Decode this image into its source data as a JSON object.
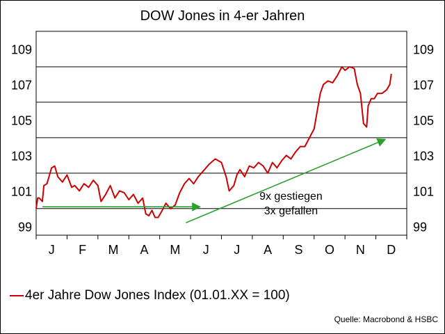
{
  "chart_data": {
    "type": "line",
    "title": "DOW Jones in 4-er Jahren",
    "x_months": [
      "J",
      "F",
      "M",
      "A",
      "M",
      "J",
      "J",
      "A",
      "S",
      "O",
      "N",
      "D"
    ],
    "ylim": [
      98.5,
      110
    ],
    "y_ticks": [
      99,
      101,
      103,
      105,
      107,
      109
    ],
    "y_gridlines": [
      100,
      102,
      104,
      106,
      108,
      110
    ],
    "grid": true,
    "legend_position": "bottom-left",
    "series": [
      {
        "name": "4er Jahre Dow Jones Index (01.01.XX = 100)",
        "color": "#cc0000",
        "x": [
          0,
          0.05,
          0.1,
          0.2,
          0.25,
          0.35,
          0.5,
          0.6,
          0.7,
          0.85,
          1,
          1.15,
          1.25,
          1.4,
          1.55,
          1.7,
          1.85,
          2.0,
          2.1,
          2.25,
          2.4,
          2.55,
          2.7,
          2.85,
          3.0,
          3.15,
          3.3,
          3.45,
          3.55,
          3.65,
          3.75,
          3.85,
          3.95,
          4.05,
          4.2,
          4.35,
          4.5,
          4.65,
          4.8,
          4.95,
          5.1,
          5.25,
          5.4,
          5.6,
          5.8,
          6.0,
          6.15,
          6.25,
          6.4,
          6.5,
          6.6,
          6.75,
          6.9,
          7.05,
          7.2,
          7.35,
          7.5,
          7.65,
          7.8,
          7.95,
          8.1,
          8.25,
          8.4,
          8.55,
          8.7,
          8.85,
          9.0,
          9.1,
          9.2,
          9.3,
          9.45,
          9.6,
          9.75,
          9.9,
          10.0,
          10.15,
          10.3,
          10.4,
          10.5,
          10.6,
          10.7,
          10.75,
          10.85,
          10.95,
          11.05,
          11.2,
          11.35,
          11.45,
          11.5
        ],
        "y": [
          100.0,
          100.6,
          100.6,
          100.4,
          101.3,
          101.4,
          102.3,
          102.4,
          101.8,
          101.5,
          101.9,
          101.2,
          101.3,
          101.0,
          101.4,
          101.2,
          101.6,
          101.3,
          100.4,
          100.8,
          101.3,
          100.6,
          101.0,
          100.9,
          100.5,
          100.8,
          100.3,
          100.6,
          99.7,
          99.6,
          99.9,
          99.5,
          99.5,
          99.8,
          100.3,
          100.0,
          100.2,
          100.9,
          101.4,
          101.7,
          101.4,
          101.8,
          102.1,
          102.5,
          102.8,
          102.6,
          101.8,
          101.0,
          101.3,
          101.9,
          102.2,
          101.8,
          102.4,
          102.3,
          102.6,
          102.4,
          102.0,
          102.6,
          102.3,
          102.7,
          103.0,
          102.8,
          103.2,
          103.5,
          103.5,
          104.0,
          104.5,
          105.5,
          106.5,
          107.0,
          107.2,
          107.1,
          107.5,
          108.0,
          107.8,
          108.0,
          107.9,
          107.0,
          106.5,
          104.8,
          104.6,
          105.8,
          106.2,
          106.2,
          106.5,
          106.5,
          106.7,
          107.0,
          107.6
        ]
      }
    ],
    "annotations": {
      "arrow1": {
        "x0": 0.2,
        "y0": 100.1,
        "x1": 5.3,
        "y1": 100.1,
        "color": "#2ca02c"
      },
      "arrow2": {
        "x0": 4.85,
        "y0": 99.2,
        "x1": 11.3,
        "y1": 103.9,
        "color": "#2ca02c"
      },
      "text_line1": "9x gestiegen",
      "text_line2": "3x gefallen",
      "text_anchor_x": 8.25,
      "text_anchor_y": 100.5
    }
  },
  "legend_label": "4er Jahre Dow Jones Index (01.01.XX = 100)",
  "source": "Quelle: Macrobond & HSBC"
}
